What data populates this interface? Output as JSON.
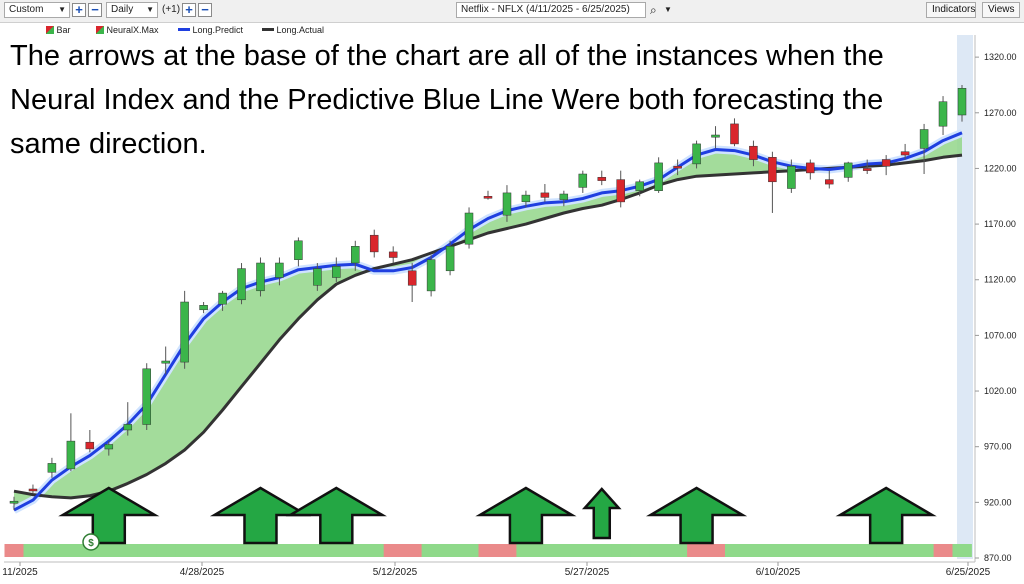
{
  "toolbar": {
    "timeframe": "Custom",
    "interval": "Daily",
    "offset": "(+1)",
    "symbol": "Netflix - NFLX (4/11/2025 - 6/25/2025)",
    "indicators": "Indicators",
    "views": "Views"
  },
  "legend": {
    "bar": "Bar",
    "neural": "NeuralX.Max",
    "predict": "Long.Predict",
    "actual": "Long.Actual"
  },
  "annotation": "The arrows at the base of the chart are all of the instances when the Neural Index and the Predictive Blue Line Were both forecasting the same direction.",
  "colors": {
    "up": "#3bb54a",
    "down": "#d9262c",
    "predict": "#1f3fe0",
    "actual": "#333333",
    "fill": "#93d68a",
    "arrow": "#24a744",
    "strip_green": "#8fd98a",
    "strip_red": "#ea8a8a"
  },
  "chart_data": {
    "type": "candlestick",
    "ylim": [
      870,
      1330
    ],
    "y_ticks": [
      "1320.00",
      "1270.00",
      "1220.00",
      "1170.00",
      "1120.00",
      "1070.00",
      "1020.00",
      "970.00",
      "920.00",
      "870.00"
    ],
    "x_ticks": [
      "11/2025",
      "4/28/2025",
      "5/12/2025",
      "5/27/2025",
      "6/10/2025",
      "6/25/2025"
    ],
    "dates": [
      "4/11",
      "4/14",
      "4/15",
      "4/16",
      "4/17",
      "4/21",
      "4/22",
      "4/23",
      "4/24",
      "4/25",
      "4/28",
      "4/29",
      "4/30",
      "5/1",
      "5/2",
      "5/5",
      "5/6",
      "5/7",
      "5/8",
      "5/9",
      "5/12",
      "5/13",
      "5/14",
      "5/15",
      "5/16",
      "5/19",
      "5/20",
      "5/21",
      "5/22",
      "5/23",
      "5/27",
      "5/28",
      "5/29",
      "5/30",
      "6/2",
      "6/3",
      "6/4",
      "6/5",
      "6/6",
      "6/9",
      "6/10",
      "6/11",
      "6/12",
      "6/13",
      "6/16",
      "6/17",
      "6/18",
      "6/20",
      "6/23",
      "6/24",
      "6/25"
    ],
    "candles": [
      [
        920,
        925,
        913,
        921
      ],
      [
        932,
        936,
        928,
        931
      ],
      [
        947,
        960,
        942,
        955
      ],
      [
        950,
        1000,
        948,
        975
      ],
      [
        974,
        985,
        965,
        968
      ],
      [
        968,
        975,
        962,
        972
      ],
      [
        985,
        1010,
        980,
        990
      ],
      [
        990,
        1045,
        985,
        1040
      ],
      [
        1045,
        1060,
        1035,
        1047
      ],
      [
        1046,
        1110,
        1040,
        1100
      ],
      [
        1093,
        1100,
        1090,
        1097
      ],
      [
        1098,
        1110,
        1092,
        1108
      ],
      [
        1102,
        1135,
        1098,
        1130
      ],
      [
        1110,
        1140,
        1105,
        1135
      ],
      [
        1122,
        1140,
        1115,
        1135
      ],
      [
        1138,
        1158,
        1132,
        1155
      ],
      [
        1115,
        1135,
        1110,
        1130
      ],
      [
        1122,
        1140,
        1118,
        1132
      ],
      [
        1135,
        1155,
        1128,
        1150
      ],
      [
        1160,
        1165,
        1140,
        1145
      ],
      [
        1145,
        1150,
        1135,
        1140
      ],
      [
        1128,
        1135,
        1100,
        1115
      ],
      [
        1110,
        1142,
        1105,
        1138
      ],
      [
        1128,
        1155,
        1124,
        1150
      ],
      [
        1152,
        1185,
        1148,
        1180
      ],
      [
        1195,
        1200,
        1192,
        1194
      ],
      [
        1178,
        1205,
        1172,
        1198
      ],
      [
        1190,
        1200,
        1185,
        1196
      ],
      [
        1198,
        1206,
        1190,
        1194
      ],
      [
        1192,
        1200,
        1186,
        1197
      ],
      [
        1203,
        1218,
        1198,
        1215
      ],
      [
        1212,
        1218,
        1205,
        1209
      ],
      [
        1210,
        1218,
        1185,
        1190
      ],
      [
        1200,
        1210,
        1195,
        1208
      ],
      [
        1200,
        1230,
        1198,
        1225
      ],
      [
        1222,
        1228,
        1214,
        1221
      ],
      [
        1224,
        1245,
        1220,
        1242
      ],
      [
        1248,
        1258,
        1238,
        1250
      ],
      [
        1260,
        1265,
        1240,
        1242
      ],
      [
        1240,
        1245,
        1222,
        1228
      ],
      [
        1230,
        1235,
        1180,
        1208
      ],
      [
        1202,
        1228,
        1198,
        1222
      ],
      [
        1225,
        1228,
        1210,
        1216
      ],
      [
        1210,
        1218,
        1202,
        1206
      ],
      [
        1212,
        1226,
        1208,
        1225
      ],
      [
        1220,
        1228,
        1215,
        1218
      ],
      [
        1228,
        1232,
        1214,
        1222
      ],
      [
        1235,
        1242,
        1228,
        1232
      ],
      [
        1238,
        1260,
        1215,
        1255
      ],
      [
        1258,
        1285,
        1250,
        1280
      ],
      [
        1268,
        1295,
        1262,
        1292
      ]
    ],
    "long_predict": [
      913,
      922,
      940,
      952,
      962,
      975,
      990,
      1008,
      1035,
      1062,
      1085,
      1100,
      1112,
      1118,
      1122,
      1129,
      1131,
      1133,
      1134,
      1128,
      1128,
      1131,
      1140,
      1152,
      1165,
      1175,
      1182,
      1186,
      1189,
      1190,
      1193,
      1198,
      1200,
      1204,
      1210,
      1221,
      1232,
      1237,
      1236,
      1232,
      1226,
      1222,
      1220,
      1219,
      1221,
      1224,
      1225,
      1229,
      1235,
      1245,
      1252
    ],
    "long_actual": [
      930,
      927,
      925,
      924,
      926,
      930,
      937,
      945,
      955,
      967,
      983,
      1003,
      1024,
      1045,
      1066,
      1085,
      1102,
      1116,
      1124,
      1130,
      1134,
      1138,
      1144,
      1150,
      1156,
      1162,
      1166,
      1170,
      1175,
      1180,
      1184,
      1187,
      1192,
      1198,
      1205,
      1210,
      1213,
      1214,
      1215,
      1216,
      1217,
      1218,
      1219,
      1220,
      1221,
      1222,
      1223,
      1225,
      1227,
      1230,
      1232
    ],
    "arrows": [
      {
        "index": 5,
        "direction": "up",
        "size": "large"
      },
      {
        "index": 13,
        "direction": "up",
        "size": "large"
      },
      {
        "index": 17,
        "direction": "up",
        "size": "large"
      },
      {
        "index": 27,
        "direction": "up",
        "size": "large"
      },
      {
        "index": 31,
        "direction": "up",
        "size": "small"
      },
      {
        "index": 36,
        "direction": "up",
        "size": "large"
      },
      {
        "index": 46,
        "direction": "up",
        "size": "large"
      }
    ],
    "neural_strip": [
      "red",
      "green",
      "green",
      "green",
      "green",
      "green",
      "green",
      "green",
      "green",
      "green",
      "green",
      "green",
      "green",
      "green",
      "green",
      "green",
      "green",
      "green",
      "green",
      "green",
      "red",
      "red",
      "green",
      "green",
      "green",
      "red",
      "red",
      "green",
      "green",
      "green",
      "green",
      "green",
      "green",
      "green",
      "green",
      "green",
      "red",
      "red",
      "green",
      "green",
      "green",
      "green",
      "green",
      "green",
      "green",
      "green",
      "green",
      "green",
      "green",
      "red",
      "green"
    ]
  }
}
